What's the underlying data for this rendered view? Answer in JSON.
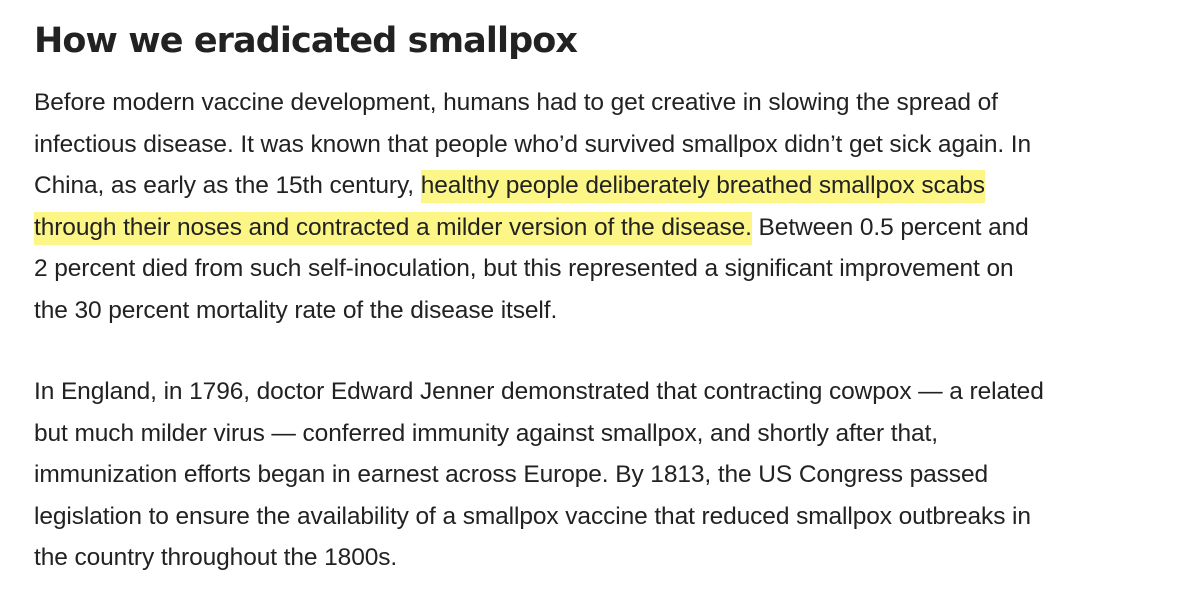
{
  "article": {
    "title": "How we eradicated smallpox",
    "paragraph1": {
      "lines": [
        [
          "Before modern vaccine development, humans had to get creative in slowing the spread of"
        ],
        [
          "infectious disease. It was known that people who’d survived smallpox didn’t get sick again. In"
        ],
        [
          "China, as early as the 15th century, ",
          "healthy people deliberately breathed smallpox scabs"
        ],
        [
          "through their noses and contracted a milder version of the disease.",
          " Between 0.5 percent and"
        ],
        [
          "2 percent died from such self-inoculation, but this represented a significant improvement on"
        ],
        [
          "the 30 percent mortality rate of the disease itself."
        ]
      ]
    },
    "paragraph2": {
      "lines": [
        "In England, in 1796, doctor Edward Jenner demonstrated that contracting cowpox — a related",
        "but much milder virus — conferred immunity against smallpox, and shortly after that,",
        "immunization efforts began in earnest across Europe. By 1813, the US Congress passed",
        "legislation to ensure the availability of a smallpox vaccine that reduced smallpox outbreaks in",
        "the country throughout the 1800s."
      ]
    },
    "colors": {
      "text": "#222222",
      "highlight": "#fcf686",
      "background": "#ffffff"
    }
  }
}
